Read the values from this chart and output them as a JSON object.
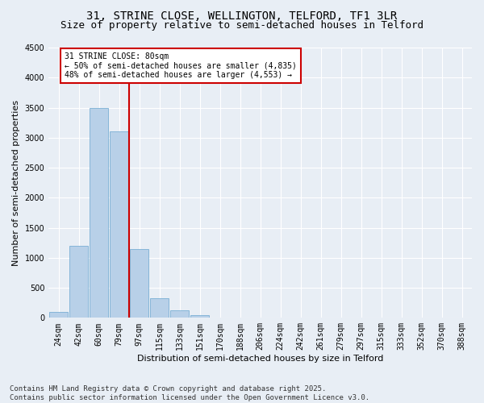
{
  "title_line1": "31, STRINE CLOSE, WELLINGTON, TELFORD, TF1 3LR",
  "title_line2": "Size of property relative to semi-detached houses in Telford",
  "xlabel": "Distribution of semi-detached houses by size in Telford",
  "ylabel": "Number of semi-detached properties",
  "categories": [
    "24sqm",
    "42sqm",
    "60sqm",
    "79sqm",
    "97sqm",
    "115sqm",
    "133sqm",
    "151sqm",
    "170sqm",
    "188sqm",
    "206sqm",
    "224sqm",
    "242sqm",
    "261sqm",
    "279sqm",
    "297sqm",
    "315sqm",
    "333sqm",
    "352sqm",
    "370sqm",
    "388sqm"
  ],
  "values": [
    100,
    1200,
    3500,
    3100,
    1150,
    320,
    120,
    50,
    0,
    0,
    0,
    0,
    0,
    0,
    0,
    0,
    0,
    0,
    0,
    0,
    0
  ],
  "bar_color": "#b8d0e8",
  "bar_edge_color": "#7aafd4",
  "vline_x_index": 3,
  "annotation_title": "31 STRINE CLOSE: 80sqm",
  "annotation_line1": "← 50% of semi-detached houses are smaller (4,835)",
  "annotation_line2": "48% of semi-detached houses are larger (4,553) →",
  "annotation_box_color": "#ffffff",
  "annotation_box_edge_color": "#cc0000",
  "vline_color": "#cc0000",
  "ylim": [
    0,
    4500
  ],
  "yticks": [
    0,
    500,
    1000,
    1500,
    2000,
    2500,
    3000,
    3500,
    4000,
    4500
  ],
  "footer_line1": "Contains HM Land Registry data © Crown copyright and database right 2025.",
  "footer_line2": "Contains public sector information licensed under the Open Government Licence v3.0.",
  "bg_color": "#e8eef5",
  "plot_bg_color": "#e8eef5",
  "title_fontsize": 10,
  "subtitle_fontsize": 9,
  "tick_fontsize": 7,
  "label_fontsize": 8,
  "footer_fontsize": 6.5
}
